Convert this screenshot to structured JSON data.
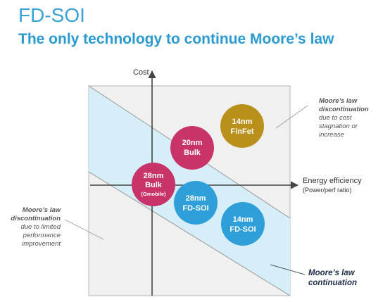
{
  "header": {
    "title": "FD-SOI",
    "subtitle": "The only technology to continue Moore’s law"
  },
  "axes": {
    "y_label": "Cost",
    "x_label": "Energy efficiency",
    "x_sublabel": "(Power/perf ratio)"
  },
  "nodes": [
    {
      "id": "14nm-finfet",
      "lines": [
        "14nm",
        "FinFet"
      ],
      "color": "#B8901A"
    },
    {
      "id": "20nm-bulk",
      "lines": [
        "20nm",
        "Bulk"
      ],
      "color": "#C8336A"
    },
    {
      "id": "28nm-bulk",
      "lines": [
        "28nm",
        "Bulk"
      ],
      "small": "(Gmobile)",
      "color": "#C8336A"
    },
    {
      "id": "28nm-fdsoi",
      "lines": [
        "28nm",
        "FD-SOI"
      ],
      "color": "#2E9FD8"
    },
    {
      "id": "14nm-fdsoi",
      "lines": [
        "14nm",
        "FD-SOI"
      ],
      "color": "#2E9FD8"
    }
  ],
  "notes": {
    "right": {
      "title_line1": "Moore’s law",
      "title_line2": "discontinuation",
      "body": [
        "due to cost",
        "stagnation or",
        "increase"
      ]
    },
    "left": {
      "title_line1": "Moore’s law",
      "title_line2": "discontinuation",
      "body": [
        "due to limited",
        "performance",
        "improvement"
      ]
    },
    "continuation": {
      "line1": "Moore’s law",
      "line2": "continuation"
    }
  },
  "colors": {
    "band": "#D6EEF8",
    "plot_bg": "#F0F0F0",
    "accent_title": "#3AA3D6"
  }
}
